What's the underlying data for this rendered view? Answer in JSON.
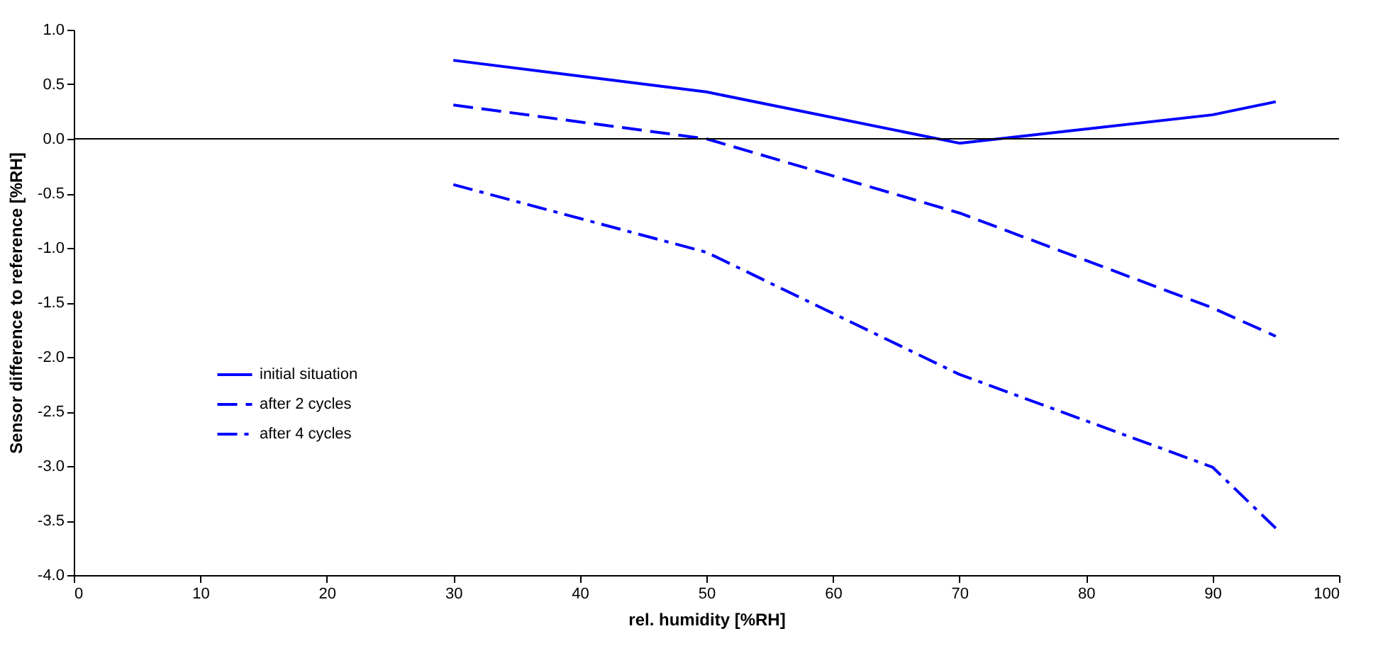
{
  "chart_data": {
    "type": "line",
    "xlabel": "rel. humidity [%RH]",
    "ylabel": "Sensor difference to reference [%RH]",
    "x": [
      30,
      50,
      70,
      90,
      95
    ],
    "series": [
      {
        "name": "initial situation",
        "color": "#0000ff",
        "line_style": "solid",
        "values": [
          0.72,
          0.43,
          -0.04,
          0.22,
          0.34
        ]
      },
      {
        "name": "after 2 cycles",
        "color": "#0000ff",
        "line_style": "dashed",
        "values": [
          0.31,
          0.0,
          -0.68,
          -1.55,
          -1.81
        ]
      },
      {
        "name": "after 4 cycles",
        "color": "#0000ff",
        "line_style": "dashdot",
        "values": [
          -0.42,
          -1.04,
          -2.16,
          -3.01,
          -3.57
        ]
      }
    ],
    "xlim": [
      0,
      100
    ],
    "xticks": [
      0,
      10,
      20,
      30,
      40,
      50,
      60,
      70,
      80,
      90,
      100
    ],
    "ylim": [
      -4,
      1
    ],
    "yticks": [
      {
        "value": -4,
        "label": "-4.0"
      },
      {
        "value": -3.5,
        "label": "-3.5"
      },
      {
        "value": -3,
        "label": "-3.0"
      },
      {
        "value": -2.5,
        "label": "-2.5"
      },
      {
        "value": -2,
        "label": "-2.0"
      },
      {
        "value": -1.5,
        "label": "-1.5"
      },
      {
        "value": -1,
        "label": "-1.0"
      },
      {
        "value": -0.5,
        "label": "-0.5"
      },
      {
        "value": 0,
        "label": "0.0"
      },
      {
        "value": 0.5,
        "label": "0.5"
      },
      {
        "value": 1,
        "label": "1.0"
      }
    ],
    "ref_lines": [
      {
        "axis": "y",
        "value": 0,
        "color": "#000000"
      }
    ],
    "grid": false,
    "legend": "left",
    "marker": "none"
  }
}
